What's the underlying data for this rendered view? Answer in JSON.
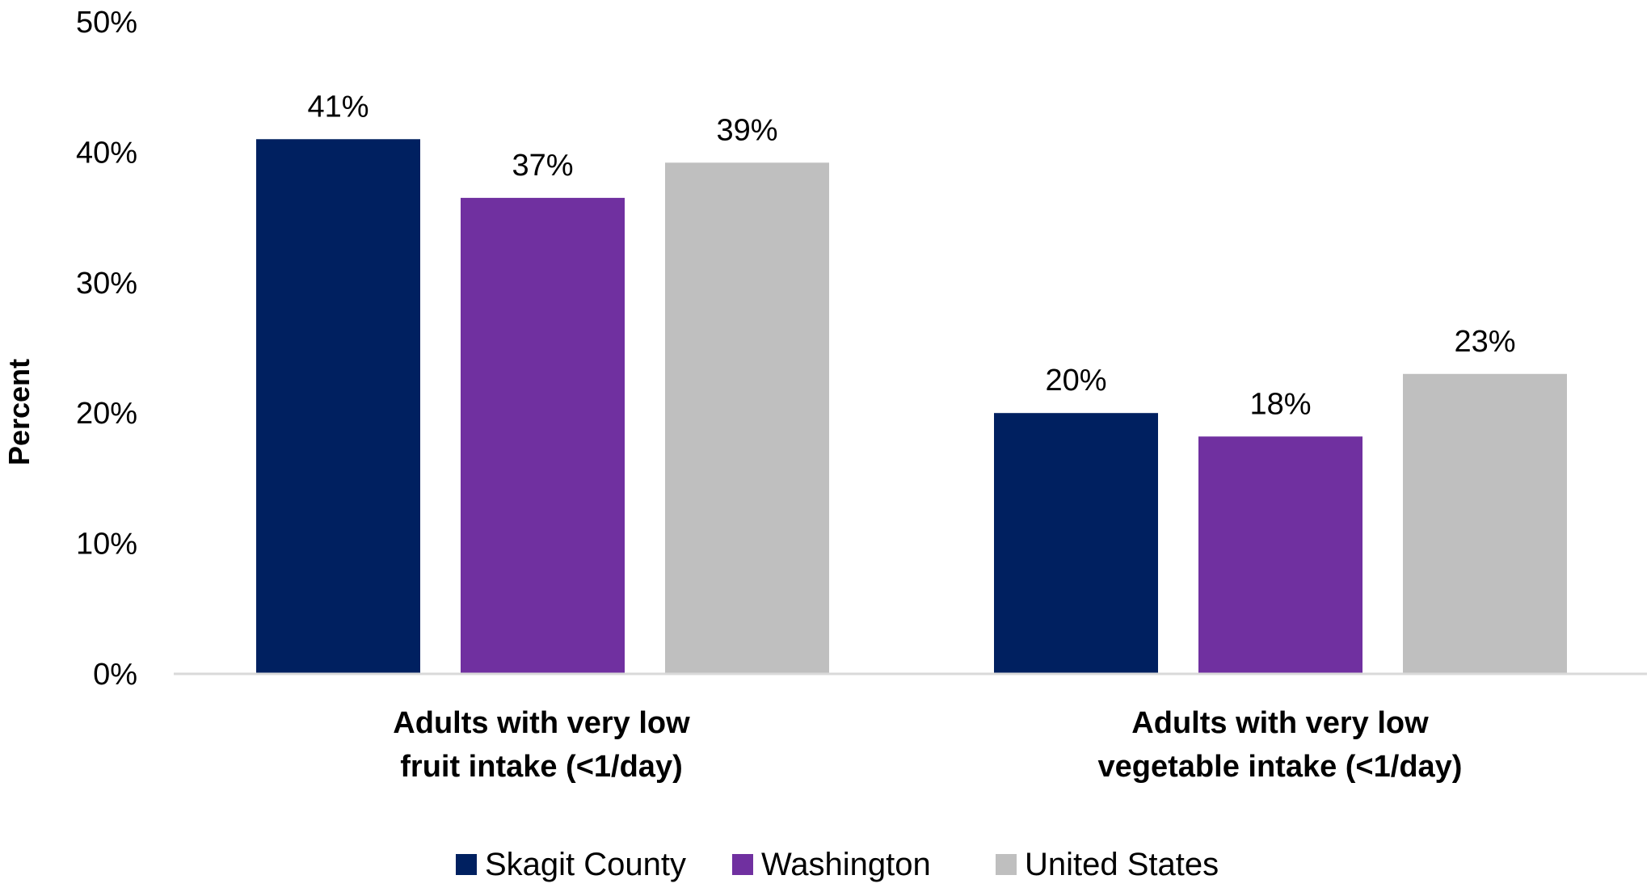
{
  "chart_data": {
    "type": "bar",
    "ylabel": "Percent",
    "ylim": [
      0,
      50
    ],
    "y_ticks": [
      "0%",
      "10%",
      "20%",
      "30%",
      "40%",
      "50%"
    ],
    "y_tick_values": [
      0,
      10,
      20,
      30,
      40,
      50
    ],
    "grid": false,
    "legend_position": "bottom",
    "categories": [
      [
        "Adults with very low",
        "fruit intake (<1/day)"
      ],
      [
        "Adults with very low",
        "vegetable intake (<1/day)"
      ]
    ],
    "series": [
      {
        "name": "Skagit County",
        "color": "#002060",
        "values": [
          41,
          20
        ],
        "labels": [
          "41%",
          "20%"
        ]
      },
      {
        "name": "Washington",
        "color": "#7030A0",
        "values": [
          36.5,
          18.2
        ],
        "labels": [
          "37%",
          "18%"
        ]
      },
      {
        "name": "United States",
        "color": "#BFBFBF",
        "values": [
          39.2,
          23
        ],
        "labels": [
          "39%",
          "23%"
        ]
      }
    ]
  }
}
